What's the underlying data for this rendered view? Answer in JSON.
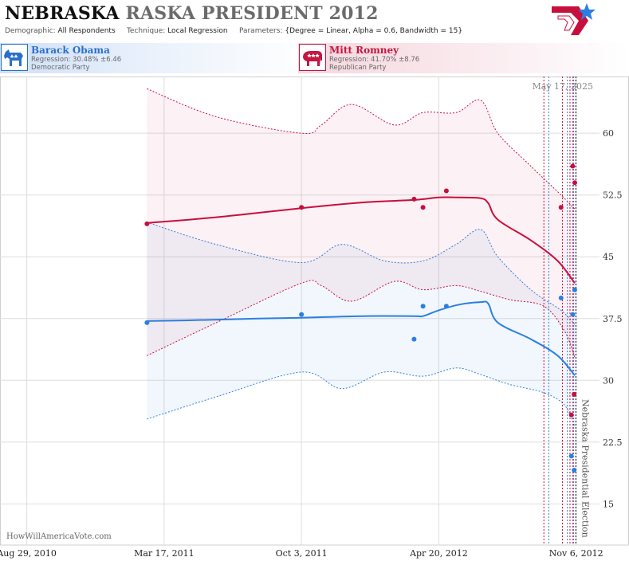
{
  "header": {
    "title_state": "NEBRASKA",
    "title_ghost": "RASKA",
    "title_race": "PRESIDENT 2012",
    "demographic_label": "Demographic:",
    "demographic_value": "All Respondents",
    "technique_label": "Technique:",
    "technique_value": "Local Regression",
    "parameters_label": "Parameters:",
    "parameters_value": "{Degree = Linear, Alpha = 0.6, Bandwidth = 15}"
  },
  "candidates": {
    "dem": {
      "name": "Barack Obama",
      "regression": "Regression: 30.48% ±6.46",
      "party": "Democratic Party",
      "color": "#2a7fe0"
    },
    "rep": {
      "name": "Mitt Romney",
      "regression": "Regression: 41.70% ±8.76",
      "party": "Republican Party",
      "color": "#c70f3e"
    }
  },
  "watermark": "HowWillAmericaVote.com",
  "date_stamp": "May 17, 2025",
  "election_label": "Nebraska Presidential Election",
  "chart_data": {
    "type": "line",
    "x_axis": {
      "type": "date",
      "range": [
        "2010-07-21",
        "2012-12-10"
      ],
      "ticks": [
        {
          "date": "2010-08-29",
          "label": "Aug 29, 2010"
        },
        {
          "date": "2011-03-17",
          "label": "Mar 17, 2011"
        },
        {
          "date": "2011-10-03",
          "label": "Oct 3, 2011"
        },
        {
          "date": "2012-04-20",
          "label": "Apr 20, 2012"
        },
        {
          "date": "2012-11-06",
          "label": "Nov 6, 2012"
        }
      ]
    },
    "y_axis": {
      "range": [
        10,
        66.5
      ],
      "ticks": [
        15,
        22.5,
        30,
        37.5,
        45,
        52.5,
        60
      ]
    },
    "grid": true,
    "election_date": "2012-11-06",
    "poll_dates": [
      "2012-09-20",
      "2012-09-26",
      "2012-10-17",
      "2012-10-23",
      "2012-10-28",
      "2012-10-31",
      "2012-11-02",
      "2012-11-04"
    ],
    "series": [
      {
        "name": "Barack Obama",
        "color": "#2a7fe0",
        "points": [
          {
            "date": "2011-02-20",
            "value": 37
          },
          {
            "date": "2011-10-03",
            "value": 38
          },
          {
            "date": "2012-03-15",
            "value": 35
          },
          {
            "date": "2012-03-28",
            "value": 39
          },
          {
            "date": "2012-05-01",
            "value": 39
          },
          {
            "date": "2012-10-15",
            "value": 40
          },
          {
            "date": "2012-11-01",
            "value": 38
          },
          {
            "date": "2012-10-30",
            "value": 20.8
          },
          {
            "date": "2012-11-04",
            "value": 41
          },
          {
            "date": "2012-11-03",
            "value": 19.1
          }
        ],
        "trend": [
          {
            "date": "2011-02-20",
            "value": 37.2
          },
          {
            "date": "2011-05-01",
            "value": 37.3
          },
          {
            "date": "2011-08-01",
            "value": 37.5
          },
          {
            "date": "2011-10-03",
            "value": 37.6
          },
          {
            "date": "2012-01-01",
            "value": 37.8
          },
          {
            "date": "2012-03-15",
            "value": 37.8
          },
          {
            "date": "2012-03-28",
            "value": 37.8
          },
          {
            "date": "2012-04-20",
            "value": 38.5
          },
          {
            "date": "2012-05-20",
            "value": 39.2
          },
          {
            "date": "2012-06-20",
            "value": 39.5
          },
          {
            "date": "2012-07-01",
            "value": 39.3
          },
          {
            "date": "2012-07-15",
            "value": 37
          },
          {
            "date": "2012-09-01",
            "value": 35
          },
          {
            "date": "2012-10-10",
            "value": 33
          },
          {
            "date": "2012-11-04",
            "value": 30.6
          }
        ],
        "upper": [
          {
            "date": "2011-02-20",
            "value": 49.2
          },
          {
            "date": "2011-06-01",
            "value": 46.5
          },
          {
            "date": "2011-10-03",
            "value": 44.3
          },
          {
            "date": "2011-12-01",
            "value": 46.5
          },
          {
            "date": "2012-02-01",
            "value": 44.5
          },
          {
            "date": "2012-03-28",
            "value": 44.5
          },
          {
            "date": "2012-05-15",
            "value": 46.5
          },
          {
            "date": "2012-06-20",
            "value": 48.3
          },
          {
            "date": "2012-07-15",
            "value": 45
          },
          {
            "date": "2012-09-01",
            "value": 41
          },
          {
            "date": "2012-10-15",
            "value": 38.5
          },
          {
            "date": "2012-11-04",
            "value": 36.8
          }
        ],
        "lower": [
          {
            "date": "2011-02-20",
            "value": 25.3
          },
          {
            "date": "2011-06-01",
            "value": 28
          },
          {
            "date": "2011-10-03",
            "value": 31
          },
          {
            "date": "2011-12-01",
            "value": 29
          },
          {
            "date": "2012-02-01",
            "value": 31
          },
          {
            "date": "2012-03-28",
            "value": 30.5
          },
          {
            "date": "2012-05-15",
            "value": 31.5
          },
          {
            "date": "2012-06-20",
            "value": 30.7
          },
          {
            "date": "2012-08-01",
            "value": 29.5
          },
          {
            "date": "2012-09-20",
            "value": 28.5
          },
          {
            "date": "2012-10-20",
            "value": 27
          },
          {
            "date": "2012-11-04",
            "value": 24.4
          }
        ]
      },
      {
        "name": "Mitt Romney",
        "color": "#c70f3e",
        "points": [
          {
            "date": "2011-02-20",
            "value": 49
          },
          {
            "date": "2011-10-03",
            "value": 51
          },
          {
            "date": "2012-03-15",
            "value": 52
          },
          {
            "date": "2012-03-28",
            "value": 51
          },
          {
            "date": "2012-05-01",
            "value": 53
          },
          {
            "date": "2012-10-15",
            "value": 51
          },
          {
            "date": "2012-11-01",
            "value": 56
          },
          {
            "date": "2012-10-30",
            "value": 25.8
          },
          {
            "date": "2012-11-04",
            "value": 54
          },
          {
            "date": "2012-11-03",
            "value": 28.3
          }
        ],
        "trend": [
          {
            "date": "2011-02-20",
            "value": 49.1
          },
          {
            "date": "2011-06-01",
            "value": 49.8
          },
          {
            "date": "2011-10-03",
            "value": 50.9
          },
          {
            "date": "2012-01-01",
            "value": 51.6
          },
          {
            "date": "2012-03-15",
            "value": 51.9
          },
          {
            "date": "2012-04-20",
            "value": 52.2
          },
          {
            "date": "2012-05-20",
            "value": 52.2
          },
          {
            "date": "2012-06-20",
            "value": 52.1
          },
          {
            "date": "2012-07-01",
            "value": 51.5
          },
          {
            "date": "2012-07-15",
            "value": 49.5
          },
          {
            "date": "2012-09-01",
            "value": 47
          },
          {
            "date": "2012-10-10",
            "value": 44.5
          },
          {
            "date": "2012-11-04",
            "value": 41.8
          }
        ],
        "upper": [
          {
            "date": "2011-02-20",
            "value": 65.4
          },
          {
            "date": "2011-06-01",
            "value": 62
          },
          {
            "date": "2011-10-03",
            "value": 60
          },
          {
            "date": "2011-11-01",
            "value": 61
          },
          {
            "date": "2011-12-15",
            "value": 63.5
          },
          {
            "date": "2012-02-15",
            "value": 61
          },
          {
            "date": "2012-03-28",
            "value": 62.5
          },
          {
            "date": "2012-05-15",
            "value": 62.5
          },
          {
            "date": "2012-06-20",
            "value": 64
          },
          {
            "date": "2012-07-15",
            "value": 60
          },
          {
            "date": "2012-09-01",
            "value": 56
          },
          {
            "date": "2012-10-15",
            "value": 52.5
          },
          {
            "date": "2012-11-04",
            "value": 50.8
          }
        ],
        "lower": [
          {
            "date": "2011-02-20",
            "value": 33
          },
          {
            "date": "2011-06-01",
            "value": 37
          },
          {
            "date": "2011-10-03",
            "value": 41.8
          },
          {
            "date": "2011-11-01",
            "value": 41.5
          },
          {
            "date": "2011-12-15",
            "value": 39.6
          },
          {
            "date": "2012-02-15",
            "value": 42
          },
          {
            "date": "2012-03-28",
            "value": 41
          },
          {
            "date": "2012-05-15",
            "value": 41.5
          },
          {
            "date": "2012-06-20",
            "value": 40.8
          },
          {
            "date": "2012-08-01",
            "value": 39.8
          },
          {
            "date": "2012-09-20",
            "value": 39
          },
          {
            "date": "2012-10-20",
            "value": 36
          },
          {
            "date": "2012-11-04",
            "value": 32.8
          }
        ]
      }
    ]
  }
}
